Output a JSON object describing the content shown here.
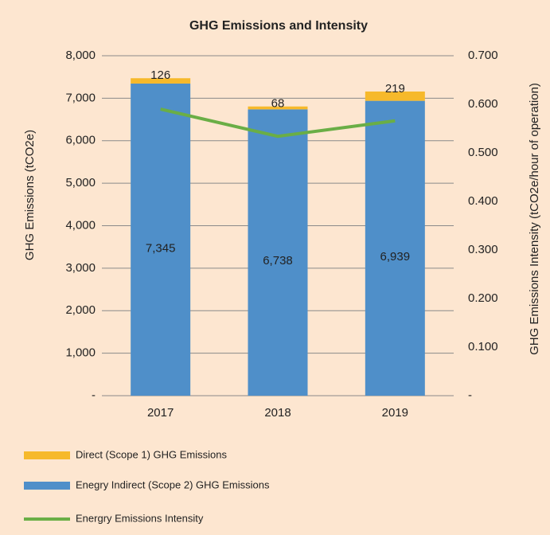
{
  "chart_data": {
    "type": "bar",
    "title": "GHG Emissions and Intensity",
    "y_label": "GHG Emissions (tCO2e)",
    "y2_label": "GHG Emissions Intensity (tCO2e/hour of operation)",
    "categories": [
      "2017",
      "2018",
      "2019"
    ],
    "stacked": true,
    "series": [
      {
        "name": "Direct (Scope 1) GHG Emissions",
        "color": "#f6b92b",
        "values": [
          126,
          68,
          219
        ],
        "stack_order": 1
      },
      {
        "name": "Enegry Indirect (Scope 2) GHG Emissions",
        "color": "#4f8fc9",
        "values": [
          7345,
          6738,
          6939
        ],
        "value_labels": [
          "7,345",
          "6,738",
          "6,939"
        ],
        "stack_order": 0
      },
      {
        "name": "Energry Emissions Intensity",
        "color": "#6aae46",
        "type": "line",
        "axis": "y2",
        "values": [
          0.59,
          0.534,
          0.566
        ]
      }
    ],
    "ylim": [
      0,
      8000
    ],
    "yticks": [
      {
        "value": 0,
        "label": "-"
      },
      {
        "value": 1000,
        "label": "1,000"
      },
      {
        "value": 2000,
        "label": "2,000"
      },
      {
        "value": 3000,
        "label": "3,000"
      },
      {
        "value": 4000,
        "label": "4,000"
      },
      {
        "value": 5000,
        "label": "5,000"
      },
      {
        "value": 6000,
        "label": "6,000"
      },
      {
        "value": 7000,
        "label": "7,000"
      },
      {
        "value": 8000,
        "label": "8,000"
      }
    ],
    "y2lim": [
      0,
      0.7
    ],
    "y2ticks": [
      {
        "value": 0,
        "label": "-"
      },
      {
        "value": 0.1,
        "label": "0.100"
      },
      {
        "value": 0.2,
        "label": "0.200"
      },
      {
        "value": 0.3,
        "label": "0.300"
      },
      {
        "value": 0.4,
        "label": "0.400"
      },
      {
        "value": 0.5,
        "label": "0.500"
      },
      {
        "value": 0.6,
        "label": "0.600"
      },
      {
        "value": 0.7,
        "label": "0.700"
      }
    ],
    "grid": true,
    "legend": "bottom"
  }
}
